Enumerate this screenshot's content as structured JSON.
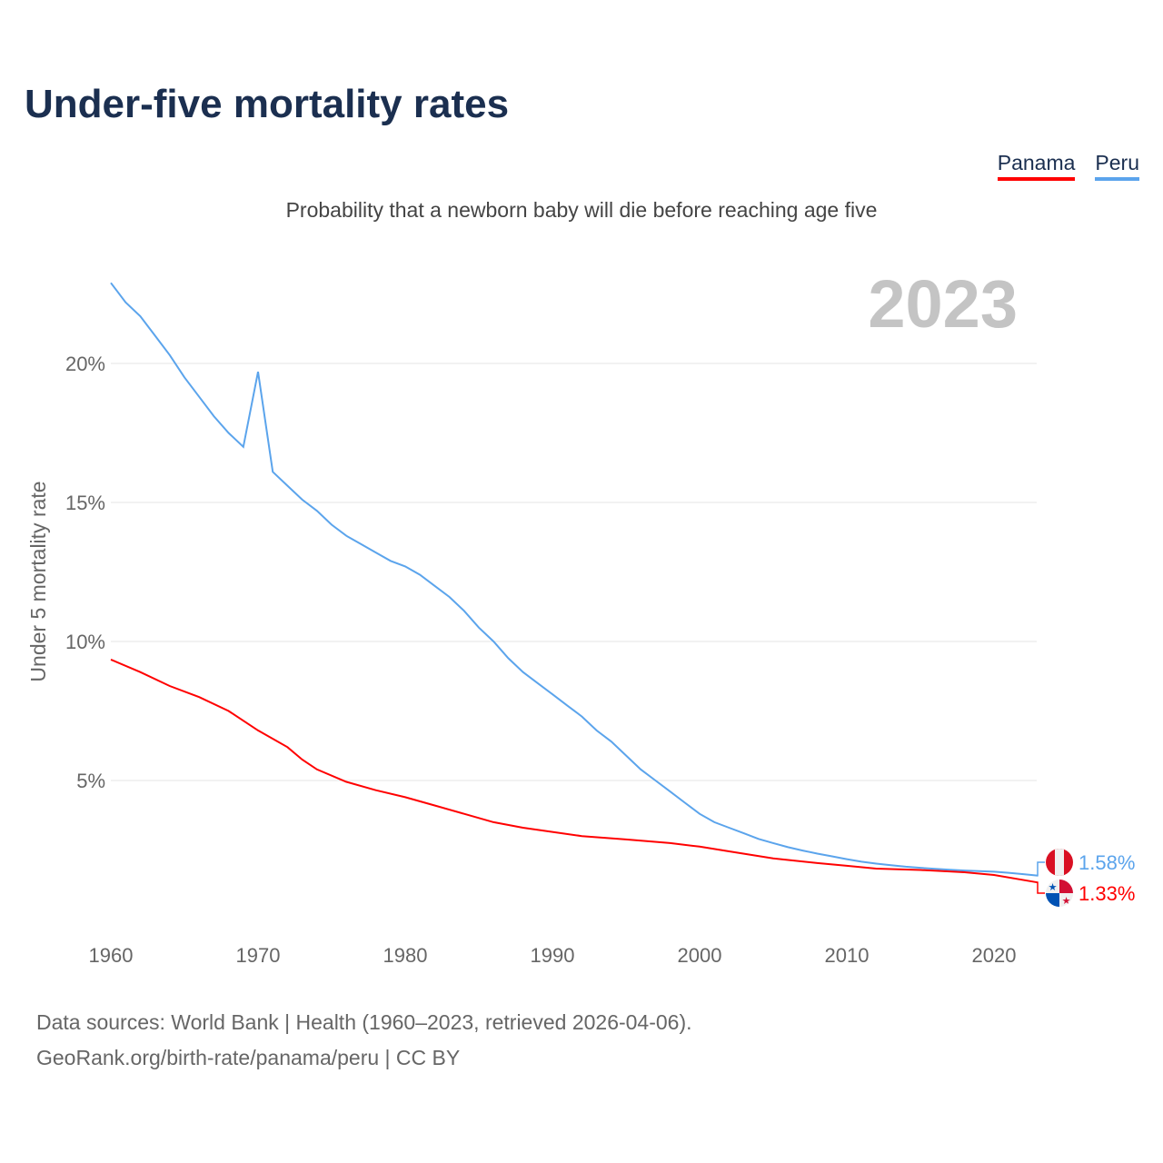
{
  "title": "Under-five mortality rates",
  "subtitle": "Probability that a newborn baby will die before reaching age five",
  "legend": [
    {
      "label": "Panama",
      "color": "#ff0000"
    },
    {
      "label": "Peru",
      "color": "#5ba4ec"
    }
  ],
  "year_label": "2023",
  "source_line1": "Data sources: World Bank | Health (1960–2023, retrieved 2026-04-06).",
  "source_line2": "GeoRank.org/birth-rate/panama/peru | CC BY",
  "chart_data": {
    "type": "line",
    "title": "Under-five mortality rates",
    "xlabel": "",
    "ylabel": "Under 5 mortality rate",
    "xlim": [
      1960,
      2023
    ],
    "ylim": [
      0,
      23
    ],
    "xticks": [
      1960,
      1970,
      1980,
      1990,
      2000,
      2010,
      2020
    ],
    "yticks": [
      5,
      10,
      15,
      20
    ],
    "ytick_labels": [
      "5%",
      "10%",
      "15%",
      "20%"
    ],
    "grid": true,
    "legend_position": "top-right",
    "series": [
      {
        "name": "Peru",
        "color": "#5ba4ec",
        "end_label": "1.58%",
        "x": [
          1960,
          1961,
          1962,
          1963,
          1964,
          1965,
          1966,
          1967,
          1968,
          1969,
          1970,
          1971,
          1972,
          1973,
          1974,
          1975,
          1976,
          1977,
          1978,
          1979,
          1980,
          1981,
          1982,
          1983,
          1984,
          1985,
          1986,
          1987,
          1988,
          1989,
          1990,
          1991,
          1992,
          1993,
          1994,
          1995,
          1996,
          1997,
          1998,
          1999,
          2000,
          2001,
          2002,
          2003,
          2004,
          2005,
          2006,
          2007,
          2008,
          2009,
          2010,
          2011,
          2012,
          2013,
          2014,
          2015,
          2016,
          2017,
          2018,
          2019,
          2020,
          2021,
          2022,
          2023
        ],
        "values": [
          22.9,
          22.2,
          21.7,
          21.0,
          20.3,
          19.5,
          18.8,
          18.1,
          17.5,
          17.0,
          19.7,
          16.1,
          15.6,
          15.1,
          14.7,
          14.2,
          13.8,
          13.5,
          13.2,
          12.9,
          12.7,
          12.4,
          12.0,
          11.6,
          11.1,
          10.5,
          10.0,
          9.4,
          8.9,
          8.5,
          8.1,
          7.7,
          7.3,
          6.8,
          6.4,
          5.9,
          5.4,
          5.0,
          4.6,
          4.2,
          3.8,
          3.5,
          3.3,
          3.1,
          2.9,
          2.75,
          2.6,
          2.48,
          2.37,
          2.27,
          2.17,
          2.08,
          2.01,
          1.95,
          1.9,
          1.86,
          1.82,
          1.79,
          1.76,
          1.74,
          1.72,
          1.68,
          1.63,
          1.58
        ]
      },
      {
        "name": "Panama",
        "color": "#ff0000",
        "end_label": "1.33%",
        "x": [
          1960,
          1962,
          1964,
          1966,
          1968,
          1970,
          1972,
          1973,
          1974,
          1976,
          1978,
          1980,
          1982,
          1984,
          1986,
          1988,
          1990,
          1992,
          1995,
          1998,
          2000,
          2002,
          2005,
          2008,
          2010,
          2012,
          2015,
          2018,
          2020,
          2023
        ],
        "values": [
          9.35,
          8.9,
          8.4,
          8.0,
          7.5,
          6.8,
          6.2,
          5.75,
          5.4,
          4.95,
          4.65,
          4.4,
          4.1,
          3.8,
          3.5,
          3.3,
          3.15,
          3.0,
          2.88,
          2.75,
          2.62,
          2.45,
          2.2,
          2.03,
          1.93,
          1.83,
          1.78,
          1.7,
          1.6,
          1.33
        ]
      }
    ]
  }
}
